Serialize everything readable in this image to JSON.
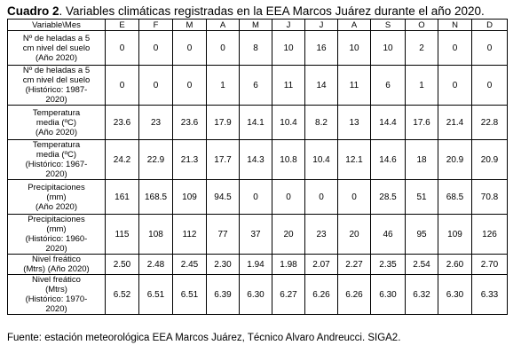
{
  "caption": {
    "prefix": "Cuadro 2",
    "text": ". Variables climáticas registradas en la EEA Marcos Juárez durante el año 2020."
  },
  "table": {
    "corner": "Variable\\Mes",
    "months": [
      "E",
      "F",
      "M",
      "A",
      "M",
      "J",
      "J",
      "A",
      "S",
      "O",
      "N",
      "D"
    ],
    "rows": [
      {
        "label": [
          "Nº de heladas a 5",
          "cm nivel del suelo",
          "(Año 2020)"
        ],
        "values": [
          "0",
          "0",
          "0",
          "0",
          "8",
          "10",
          "16",
          "10",
          "10",
          "2",
          "0",
          "0"
        ]
      },
      {
        "label": [
          "Nº de heladas a 5",
          "cm nivel del suelo",
          "(Histórico: 1987-",
          "2020)"
        ],
        "values": [
          "0",
          "0",
          "0",
          "1",
          "6",
          "11",
          "14",
          "11",
          "6",
          "1",
          "0",
          "0"
        ]
      },
      {
        "label": [
          "Temperatura",
          "media (ºC)",
          "(Año 2020)"
        ],
        "values": [
          "23.6",
          "23",
          "23.6",
          "17.9",
          "14.1",
          "10.4",
          "8.2",
          "13",
          "14.4",
          "17.6",
          "21.4",
          "22.8"
        ]
      },
      {
        "label": [
          "Temperatura",
          "media (ºC)",
          "(Histórico: 1967-",
          "2020)"
        ],
        "values": [
          "24.2",
          "22.9",
          "21.3",
          "17.7",
          "14.3",
          "10.8",
          "10.4",
          "12.1",
          "14.6",
          "18",
          "20.9",
          "20.9"
        ]
      },
      {
        "label": [
          "Precipitaciones",
          "(mm)",
          "(Año 2020)"
        ],
        "values": [
          "161",
          "168.5",
          "109",
          "94.5",
          "0",
          "0",
          "0",
          "0",
          "28.5",
          "51",
          "68.5",
          "70.8"
        ]
      },
      {
        "label": [
          "Precipitaciones",
          "(mm)",
          "(Histórico: 1960-",
          "2020)"
        ],
        "values": [
          "115",
          "108",
          "112",
          "77",
          "37",
          "20",
          "23",
          "20",
          "46",
          "95",
          "109",
          "126"
        ]
      },
      {
        "label": [
          "Nivel freático",
          "(Mtrs) (Año 2020)"
        ],
        "values": [
          "2.50",
          "2.48",
          "2.45",
          "2.30",
          "1.94",
          "1.98",
          "2.07",
          "2.27",
          "2.35",
          "2.54",
          "2.60",
          "2.70"
        ]
      },
      {
        "label": [
          "Nivel freático",
          "(Mtrs)",
          "(Histórico: 1970-",
          "2020)"
        ],
        "values": [
          "6.52",
          "6.51",
          "6.51",
          "6.39",
          "6.30",
          "6.27",
          "6.26",
          "6.26",
          "6.30",
          "6.32",
          "6.30",
          "6.33"
        ]
      }
    ]
  },
  "footnote": "Fuente: estación meteorológica EEA Marcos Juárez, Técnico Alvaro Andreucci. SIGA2."
}
